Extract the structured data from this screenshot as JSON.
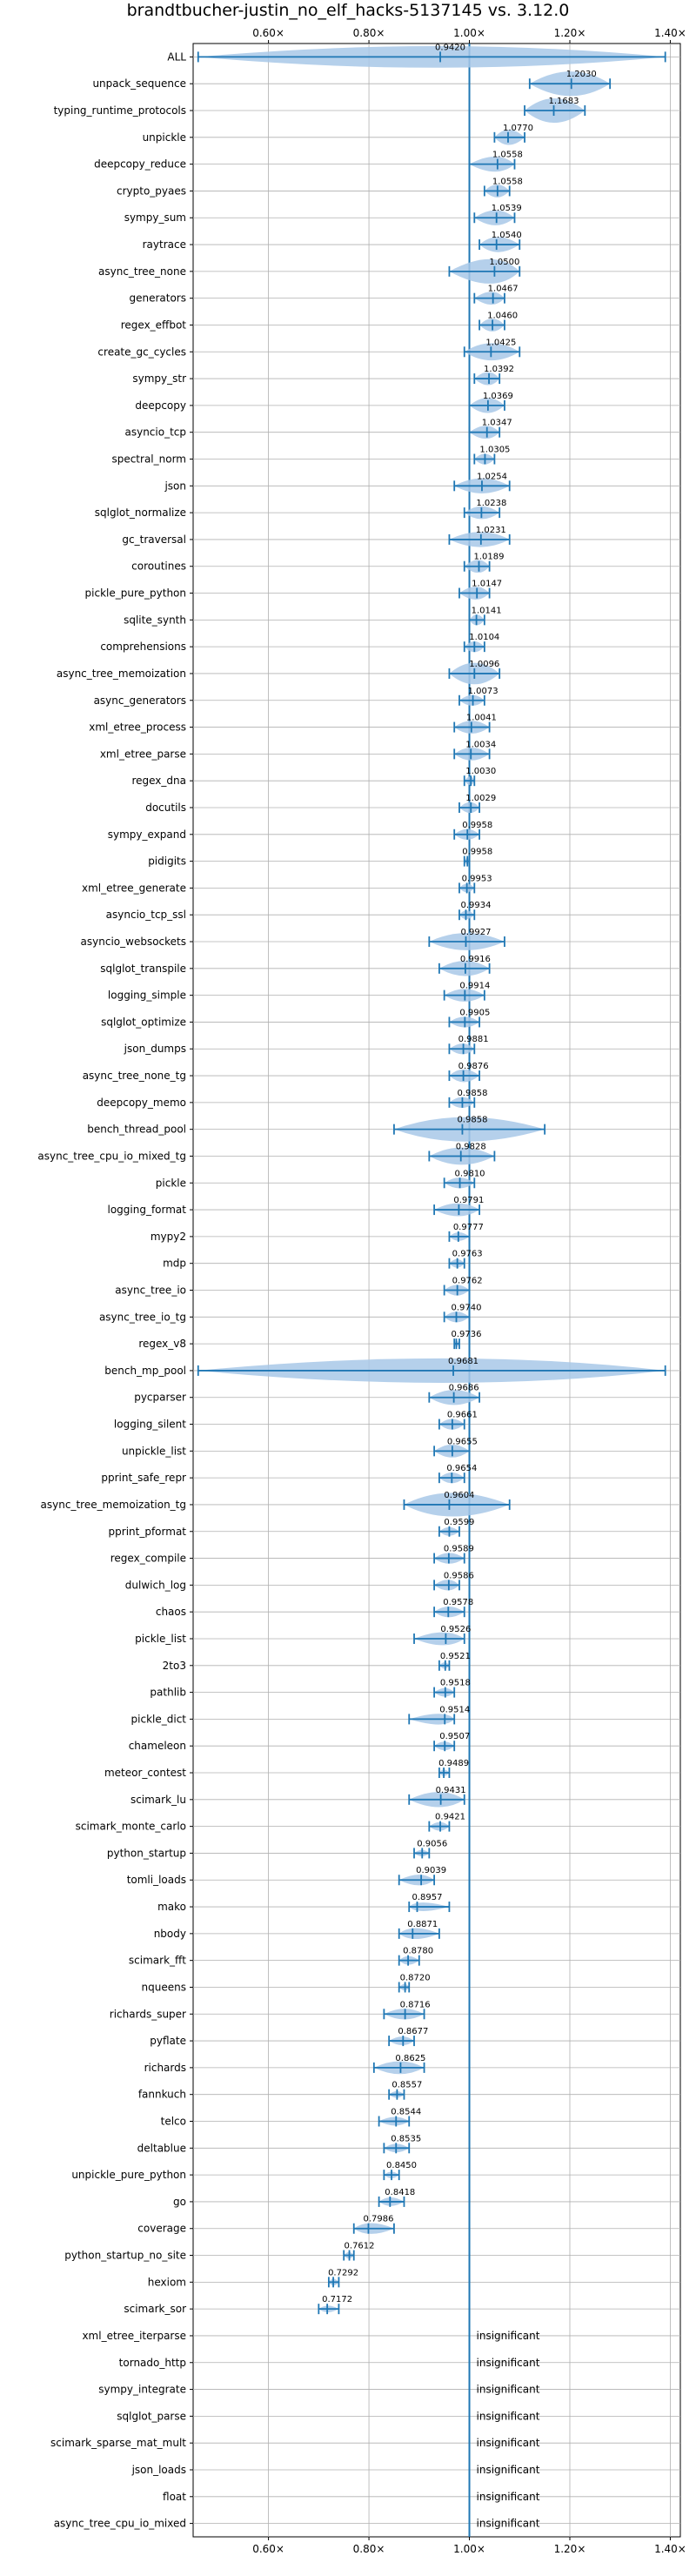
{
  "chart_data": {
    "type": "violin",
    "title": "brandtbucher-justin_no_elf_hacks-5137145 vs. 3.12.0",
    "xlabel": "",
    "ylabel": "",
    "xlim": [
      0.45,
      1.42
    ],
    "x_ticks": [
      0.6,
      0.8,
      1.0,
      1.2,
      1.4
    ],
    "x_tick_labels": [
      "0.60×",
      "0.80×",
      "1.00×",
      "1.20×",
      "1.40×"
    ],
    "reference_line": 1.0,
    "grid": true,
    "colors": {
      "body": "#a8c8e8",
      "line": "#1f77b4"
    },
    "insignificant_label": "insignificant",
    "benchmarks": [
      {
        "name": "ALL",
        "label": "0.9420",
        "value": 0.942,
        "min": 0.46,
        "max": 1.39,
        "width": 0.05,
        "label_offset": 0.0
      },
      {
        "name": "unpack_sequence",
        "label": "1.2030",
        "value": 1.203,
        "min": 1.12,
        "max": 1.28,
        "width": 0.06,
        "label_offset": 0.0
      },
      {
        "name": "typing_runtime_protocols",
        "label": "1.1683",
        "value": 1.168,
        "min": 1.11,
        "max": 1.23,
        "width": 0.06,
        "label_offset": 0.0
      },
      {
        "name": "unpickle",
        "label": "1.0770",
        "value": 1.077,
        "min": 1.05,
        "max": 1.11,
        "width": 0.035,
        "label_offset": 0.0
      },
      {
        "name": "deepcopy_reduce",
        "label": "1.0558",
        "value": 1.056,
        "min": 1.0,
        "max": 1.09,
        "width": 0.035,
        "label_offset": 0.0
      },
      {
        "name": "crypto_pyaes",
        "label": "1.0558",
        "value": 1.056,
        "min": 1.03,
        "max": 1.08,
        "width": 0.03,
        "label_offset": 0.0
      },
      {
        "name": "sympy_sum",
        "label": "1.0539",
        "value": 1.054,
        "min": 1.01,
        "max": 1.09,
        "width": 0.035,
        "label_offset": 0.0
      },
      {
        "name": "raytrace",
        "label": "1.0540",
        "value": 1.054,
        "min": 1.02,
        "max": 1.1,
        "width": 0.035,
        "label_offset": 0.0
      },
      {
        "name": "async_tree_none",
        "label": "1.0500",
        "value": 1.05,
        "min": 0.96,
        "max": 1.1,
        "width": 0.06,
        "label_offset": 0.0
      },
      {
        "name": "generators",
        "label": "1.0467",
        "value": 1.047,
        "min": 1.01,
        "max": 1.07,
        "width": 0.03,
        "label_offset": 0.0
      },
      {
        "name": "regex_effbot",
        "label": "1.0460",
        "value": 1.046,
        "min": 1.02,
        "max": 1.07,
        "width": 0.03,
        "label_offset": 0.0
      },
      {
        "name": "create_gc_cycles",
        "label": "1.0425",
        "value": 1.043,
        "min": 0.99,
        "max": 1.1,
        "width": 0.04,
        "label_offset": 0.0
      },
      {
        "name": "sympy_str",
        "label": "1.0392",
        "value": 1.039,
        "min": 1.01,
        "max": 1.06,
        "width": 0.03,
        "label_offset": 0.0
      },
      {
        "name": "deepcopy",
        "label": "1.0369",
        "value": 1.037,
        "min": 1.0,
        "max": 1.07,
        "width": 0.035,
        "label_offset": 0.0
      },
      {
        "name": "asyncio_tcp",
        "label": "1.0347",
        "value": 1.035,
        "min": 1.0,
        "max": 1.06,
        "width": 0.03,
        "label_offset": 0.0
      },
      {
        "name": "spectral_norm",
        "label": "1.0305",
        "value": 1.031,
        "min": 1.01,
        "max": 1.05,
        "width": 0.025,
        "label_offset": 0.0
      },
      {
        "name": "json",
        "label": "1.0254",
        "value": 1.025,
        "min": 0.97,
        "max": 1.08,
        "width": 0.035,
        "label_offset": 0.0
      },
      {
        "name": "sqlglot_normalize",
        "label": "1.0238",
        "value": 1.024,
        "min": 0.99,
        "max": 1.06,
        "width": 0.03,
        "label_offset": 0.0
      },
      {
        "name": "gc_traversal",
        "label": "1.0231",
        "value": 1.023,
        "min": 0.96,
        "max": 1.08,
        "width": 0.035,
        "label_offset": 0.0
      },
      {
        "name": "coroutines",
        "label": "1.0189",
        "value": 1.019,
        "min": 0.99,
        "max": 1.04,
        "width": 0.03,
        "label_offset": 0.0
      },
      {
        "name": "pickle_pure_python",
        "label": "1.0147",
        "value": 1.015,
        "min": 0.98,
        "max": 1.04,
        "width": 0.03,
        "label_offset": 0.0
      },
      {
        "name": "sqlite_synth",
        "label": "1.0141",
        "value": 1.014,
        "min": 1.0,
        "max": 1.03,
        "width": 0.025,
        "label_offset": 0.0
      },
      {
        "name": "comprehensions",
        "label": "1.0104",
        "value": 1.01,
        "min": 0.99,
        "max": 1.03,
        "width": 0.025,
        "label_offset": 0.0
      },
      {
        "name": "async_tree_memoization",
        "label": "1.0096",
        "value": 1.01,
        "min": 0.96,
        "max": 1.06,
        "width": 0.05,
        "label_offset": 0.0
      },
      {
        "name": "async_generators",
        "label": "1.0073",
        "value": 1.007,
        "min": 0.98,
        "max": 1.03,
        "width": 0.025,
        "label_offset": 0.0
      },
      {
        "name": "xml_etree_process",
        "label": "1.0041",
        "value": 1.004,
        "min": 0.97,
        "max": 1.04,
        "width": 0.03,
        "label_offset": 0.0
      },
      {
        "name": "xml_etree_parse",
        "label": "1.0034",
        "value": 1.003,
        "min": 0.97,
        "max": 1.04,
        "width": 0.03,
        "label_offset": 0.0
      },
      {
        "name": "regex_dna",
        "label": "1.0030",
        "value": 1.003,
        "min": 0.99,
        "max": 1.01,
        "width": 0.02,
        "label_offset": 0.0
      },
      {
        "name": "docutils",
        "label": "1.0029",
        "value": 1.003,
        "min": 0.98,
        "max": 1.02,
        "width": 0.025,
        "label_offset": 0.0
      },
      {
        "name": "sympy_expand",
        "label": "0.9958",
        "value": 0.996,
        "min": 0.97,
        "max": 1.02,
        "width": 0.025,
        "label_offset": 0.0
      },
      {
        "name": "pidigits",
        "label": "0.9958",
        "value": 0.996,
        "min": 0.99,
        "max": 1.0,
        "width": 0.015,
        "label_offset": 0.0
      },
      {
        "name": "xml_etree_generate",
        "label": "0.9953",
        "value": 0.995,
        "min": 0.98,
        "max": 1.01,
        "width": 0.02,
        "label_offset": 0.0
      },
      {
        "name": "asyncio_tcp_ssl",
        "label": "0.9934",
        "value": 0.993,
        "min": 0.98,
        "max": 1.01,
        "width": 0.02,
        "label_offset": 0.0
      },
      {
        "name": "asyncio_websockets",
        "label": "0.9927",
        "value": 0.993,
        "min": 0.92,
        "max": 1.07,
        "width": 0.04,
        "label_offset": 0.0
      },
      {
        "name": "sqlglot_transpile",
        "label": "0.9916",
        "value": 0.992,
        "min": 0.94,
        "max": 1.04,
        "width": 0.035,
        "label_offset": 0.0
      },
      {
        "name": "logging_simple",
        "label": "0.9914",
        "value": 0.991,
        "min": 0.95,
        "max": 1.03,
        "width": 0.03,
        "label_offset": 0.0
      },
      {
        "name": "sqlglot_optimize",
        "label": "0.9905",
        "value": 0.991,
        "min": 0.96,
        "max": 1.02,
        "width": 0.025,
        "label_offset": 0.0
      },
      {
        "name": "json_dumps",
        "label": "0.9881",
        "value": 0.988,
        "min": 0.96,
        "max": 1.01,
        "width": 0.025,
        "label_offset": 0.0
      },
      {
        "name": "async_tree_none_tg",
        "label": "0.9876",
        "value": 0.988,
        "min": 0.96,
        "max": 1.02,
        "width": 0.03,
        "label_offset": 0.0
      },
      {
        "name": "deepcopy_memo",
        "label": "0.9858",
        "value": 0.986,
        "min": 0.96,
        "max": 1.01,
        "width": 0.025,
        "label_offset": 0.0
      },
      {
        "name": "bench_thread_pool",
        "label": "0.9858",
        "value": 0.986,
        "min": 0.85,
        "max": 1.15,
        "width": 0.07,
        "label_offset": 0.0
      },
      {
        "name": "async_tree_cpu_io_mixed_tg",
        "label": "0.9828",
        "value": 0.983,
        "min": 0.92,
        "max": 1.05,
        "width": 0.04,
        "label_offset": 0.0
      },
      {
        "name": "pickle",
        "label": "0.9810",
        "value": 0.981,
        "min": 0.95,
        "max": 1.01,
        "width": 0.025,
        "label_offset": 0.0
      },
      {
        "name": "logging_format",
        "label": "0.9791",
        "value": 0.979,
        "min": 0.93,
        "max": 1.02,
        "width": 0.03,
        "label_offset": 0.0
      },
      {
        "name": "mypy2",
        "label": "0.9777",
        "value": 0.978,
        "min": 0.96,
        "max": 1.0,
        "width": 0.02,
        "label_offset": 0.0
      },
      {
        "name": "mdp",
        "label": "0.9763",
        "value": 0.976,
        "min": 0.96,
        "max": 0.99,
        "width": 0.02,
        "label_offset": 0.0
      },
      {
        "name": "async_tree_io",
        "label": "0.9762",
        "value": 0.976,
        "min": 0.95,
        "max": 1.0,
        "width": 0.025,
        "label_offset": 0.0
      },
      {
        "name": "async_tree_io_tg",
        "label": "0.9740",
        "value": 0.974,
        "min": 0.95,
        "max": 1.0,
        "width": 0.025,
        "label_offset": 0.0
      },
      {
        "name": "regex_v8",
        "label": "0.9736",
        "value": 0.974,
        "min": 0.97,
        "max": 0.98,
        "width": 0.012,
        "label_offset": 0.0
      },
      {
        "name": "bench_mp_pool",
        "label": "0.9681",
        "value": 0.968,
        "min": 0.46,
        "max": 1.39,
        "width": 0.07,
        "label_offset": 0.0
      },
      {
        "name": "pycparser",
        "label": "0.9686",
        "value": 0.969,
        "min": 0.92,
        "max": 1.02,
        "width": 0.035,
        "label_offset": 0.0
      },
      {
        "name": "logging_silent",
        "label": "0.9661",
        "value": 0.966,
        "min": 0.94,
        "max": 0.99,
        "width": 0.025,
        "label_offset": 0.0
      },
      {
        "name": "unpickle_list",
        "label": "0.9655",
        "value": 0.966,
        "min": 0.93,
        "max": 1.0,
        "width": 0.03,
        "label_offset": 0.0
      },
      {
        "name": "pprint_safe_repr",
        "label": "0.9654",
        "value": 0.965,
        "min": 0.94,
        "max": 0.99,
        "width": 0.025,
        "label_offset": 0.0
      },
      {
        "name": "async_tree_memoization_tg",
        "label": "0.9604",
        "value": 0.96,
        "min": 0.87,
        "max": 1.08,
        "width": 0.055,
        "label_offset": 0.0
      },
      {
        "name": "pprint_pformat",
        "label": "0.9599",
        "value": 0.96,
        "min": 0.94,
        "max": 0.98,
        "width": 0.02,
        "label_offset": 0.0
      },
      {
        "name": "regex_compile",
        "label": "0.9589",
        "value": 0.959,
        "min": 0.93,
        "max": 0.99,
        "width": 0.025,
        "label_offset": 0.0
      },
      {
        "name": "dulwich_log",
        "label": "0.9586",
        "value": 0.959,
        "min": 0.93,
        "max": 0.98,
        "width": 0.025,
        "label_offset": 0.0
      },
      {
        "name": "chaos",
        "label": "0.9578",
        "value": 0.958,
        "min": 0.93,
        "max": 0.99,
        "width": 0.025,
        "label_offset": 0.0
      },
      {
        "name": "pickle_list",
        "label": "0.9526",
        "value": 0.953,
        "min": 0.89,
        "max": 0.99,
        "width": 0.03,
        "label_offset": 0.0
      },
      {
        "name": "2to3",
        "label": "0.9521",
        "value": 0.952,
        "min": 0.94,
        "max": 0.96,
        "width": 0.015,
        "label_offset": 0.0
      },
      {
        "name": "pathlib",
        "label": "0.9518",
        "value": 0.952,
        "min": 0.93,
        "max": 0.97,
        "width": 0.02,
        "label_offset": 0.0
      },
      {
        "name": "pickle_dict",
        "label": "0.9514",
        "value": 0.951,
        "min": 0.88,
        "max": 0.97,
        "width": 0.025,
        "label_offset": 0.0
      },
      {
        "name": "chameleon",
        "label": "0.9507",
        "value": 0.951,
        "min": 0.93,
        "max": 0.97,
        "width": 0.02,
        "label_offset": 0.0
      },
      {
        "name": "meteor_contest",
        "label": "0.9489",
        "value": 0.949,
        "min": 0.94,
        "max": 0.96,
        "width": 0.015,
        "label_offset": 0.0
      },
      {
        "name": "scimark_lu",
        "label": "0.9431",
        "value": 0.943,
        "min": 0.88,
        "max": 0.99,
        "width": 0.035,
        "label_offset": 0.0
      },
      {
        "name": "scimark_monte_carlo",
        "label": "0.9421",
        "value": 0.942,
        "min": 0.92,
        "max": 0.96,
        "width": 0.02,
        "label_offset": 0.0
      },
      {
        "name": "python_startup",
        "label": "0.9056",
        "value": 0.906,
        "min": 0.89,
        "max": 0.92,
        "width": 0.015,
        "label_offset": 0.0
      },
      {
        "name": "tomli_loads",
        "label": "0.9039",
        "value": 0.904,
        "min": 0.86,
        "max": 0.93,
        "width": 0.025,
        "label_offset": 0.0
      },
      {
        "name": "mako",
        "label": "0.8957",
        "value": 0.896,
        "min": 0.88,
        "max": 0.96,
        "width": 0.02,
        "label_offset": 0.0
      },
      {
        "name": "nbody",
        "label": "0.8871",
        "value": 0.887,
        "min": 0.86,
        "max": 0.94,
        "width": 0.025,
        "label_offset": 0.0
      },
      {
        "name": "scimark_fft",
        "label": "0.8780",
        "value": 0.878,
        "min": 0.86,
        "max": 0.9,
        "width": 0.02,
        "label_offset": 0.0
      },
      {
        "name": "nqueens",
        "label": "0.8720",
        "value": 0.872,
        "min": 0.86,
        "max": 0.88,
        "width": 0.015,
        "label_offset": 0.0
      },
      {
        "name": "richards_super",
        "label": "0.8716",
        "value": 0.872,
        "min": 0.83,
        "max": 0.91,
        "width": 0.025,
        "label_offset": 0.0
      },
      {
        "name": "pyflate",
        "label": "0.8677",
        "value": 0.868,
        "min": 0.84,
        "max": 0.89,
        "width": 0.02,
        "label_offset": 0.0
      },
      {
        "name": "richards",
        "label": "0.8625",
        "value": 0.863,
        "min": 0.81,
        "max": 0.91,
        "width": 0.03,
        "label_offset": 0.0
      },
      {
        "name": "fannkuch",
        "label": "0.8557",
        "value": 0.856,
        "min": 0.84,
        "max": 0.87,
        "width": 0.015,
        "label_offset": 0.0
      },
      {
        "name": "telco",
        "label": "0.8544",
        "value": 0.854,
        "min": 0.82,
        "max": 0.88,
        "width": 0.02,
        "label_offset": 0.0
      },
      {
        "name": "deltablue",
        "label": "0.8535",
        "value": 0.854,
        "min": 0.83,
        "max": 0.88,
        "width": 0.02,
        "label_offset": 0.0
      },
      {
        "name": "unpickle_pure_python",
        "label": "0.8450",
        "value": 0.845,
        "min": 0.83,
        "max": 0.86,
        "width": 0.015,
        "label_offset": 0.0
      },
      {
        "name": "go",
        "label": "0.8418",
        "value": 0.842,
        "min": 0.82,
        "max": 0.87,
        "width": 0.02,
        "label_offset": 0.0
      },
      {
        "name": "coverage",
        "label": "0.7986",
        "value": 0.799,
        "min": 0.77,
        "max": 0.85,
        "width": 0.025,
        "label_offset": 0.0
      },
      {
        "name": "python_startup_no_site",
        "label": "0.7612",
        "value": 0.761,
        "min": 0.75,
        "max": 0.77,
        "width": 0.012,
        "label_offset": 0.0
      },
      {
        "name": "hexiom",
        "label": "0.7292",
        "value": 0.729,
        "min": 0.72,
        "max": 0.74,
        "width": 0.01,
        "label_offset": 0.0
      },
      {
        "name": "scimark_sor",
        "label": "0.7172",
        "value": 0.717,
        "min": 0.7,
        "max": 0.74,
        "width": 0.015,
        "label_offset": 0.0
      },
      {
        "name": "xml_etree_iterparse",
        "insignificant": true
      },
      {
        "name": "tornado_http",
        "insignificant": true
      },
      {
        "name": "sympy_integrate",
        "insignificant": true
      },
      {
        "name": "sqlglot_parse",
        "insignificant": true
      },
      {
        "name": "scimark_sparse_mat_mult",
        "insignificant": true
      },
      {
        "name": "json_loads",
        "insignificant": true
      },
      {
        "name": "float",
        "insignificant": true
      },
      {
        "name": "async_tree_cpu_io_mixed",
        "insignificant": true
      }
    ]
  }
}
